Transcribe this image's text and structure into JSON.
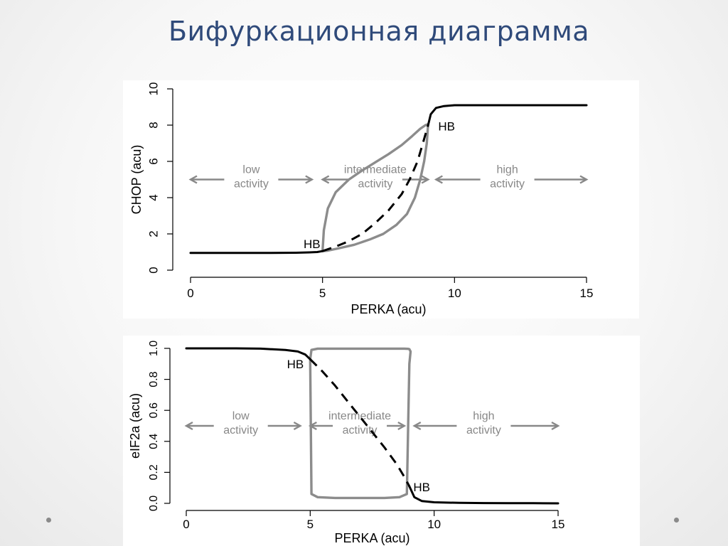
{
  "slide": {
    "title": "Бифуркационная диаграмма",
    "colors": {
      "title": "#2f4a7a",
      "stable": "#000000",
      "unstable": "#000000",
      "limit_cycle": "#8c8c8c",
      "annotation": "#888888"
    }
  },
  "chart_data": [
    {
      "type": "line",
      "xlabel": "PERKA (acu)",
      "ylabel": "CHOP (acu)",
      "xlim": [
        0,
        15
      ],
      "ylim": [
        0,
        10
      ],
      "xticks": [
        0,
        5,
        10,
        15
      ],
      "yticks": [
        0,
        2,
        4,
        6,
        8,
        10
      ],
      "grid": false,
      "series": [
        {
          "style": "solid-black",
          "x": [
            0,
            1,
            2,
            3,
            4,
            4.5,
            4.8,
            5.0
          ],
          "y": [
            0.95,
            0.95,
            0.95,
            0.95,
            0.96,
            0.98,
            1.0,
            1.05
          ]
        },
        {
          "style": "dashed-black",
          "x": [
            5.0,
            5.5,
            6,
            6.5,
            7,
            7.5,
            8,
            8.3,
            8.6,
            8.8,
            9.0
          ],
          "y": [
            1.05,
            1.3,
            1.6,
            2.0,
            2.6,
            3.3,
            4.2,
            5.0,
            6.0,
            7.0,
            8.0
          ]
        },
        {
          "style": "solid-black",
          "x": [
            9.0,
            9.1,
            9.3,
            9.6,
            10,
            11,
            12,
            13,
            14,
            15
          ],
          "y": [
            8.0,
            8.6,
            8.95,
            9.05,
            9.1,
            9.1,
            9.1,
            9.1,
            9.1,
            9.1
          ]
        },
        {
          "style": "limit-cycle-gray",
          "x": [
            5.0,
            5.05,
            5.2,
            5.5,
            6,
            6.5,
            7,
            7.5,
            8,
            8.4,
            8.7,
            8.9,
            9.0,
            8.95,
            8.85,
            8.7,
            8.5,
            8.2,
            7.8,
            7.3,
            6.8,
            6.2,
            5.6,
            5.2,
            5.0
          ],
          "y": [
            1.05,
            2.2,
            3.4,
            4.3,
            5.0,
            5.5,
            5.95,
            6.4,
            6.9,
            7.4,
            7.8,
            8.0,
            8.05,
            7.0,
            6.0,
            5.0,
            4.0,
            3.1,
            2.5,
            2.0,
            1.7,
            1.4,
            1.2,
            1.08,
            1.05
          ]
        }
      ],
      "annotations": [
        {
          "text": "HB",
          "x": 4.6,
          "y": 1.45
        },
        {
          "text": "HB",
          "x": 9.7,
          "y": 7.95
        }
      ],
      "regions": [
        {
          "lines": [
            "low",
            "activity"
          ],
          "x": 2.3,
          "arrow_from": 0,
          "arrow_to": 4.6
        },
        {
          "lines": [
            "intermediate",
            "activity"
          ],
          "x": 7.0,
          "arrow_from": 5.0,
          "arrow_to": 9.0
        },
        {
          "lines": [
            "high",
            "activity"
          ],
          "x": 12.0,
          "arrow_from": 9.3,
          "arrow_to": 15.0
        }
      ],
      "region_y": 5.0
    },
    {
      "type": "line",
      "xlabel": "PERKA (acu)",
      "ylabel": "eIF2a (acu)",
      "xlim": [
        0,
        15
      ],
      "ylim": [
        0,
        1
      ],
      "xticks": [
        0,
        5,
        10,
        15
      ],
      "yticks": [
        "0.0",
        "0.2",
        "0.4",
        "0.6",
        "0.8",
        "1.0"
      ],
      "grid": false,
      "series": [
        {
          "style": "solid-black",
          "x": [
            0,
            1,
            2,
            3,
            4,
            4.5,
            4.8,
            5.0
          ],
          "y": [
            1.0,
            1.0,
            1.0,
            0.998,
            0.99,
            0.98,
            0.96,
            0.93
          ]
        },
        {
          "style": "dashed-black",
          "x": [
            5.0,
            5.5,
            6,
            6.5,
            7,
            7.5,
            8,
            8.5,
            8.8,
            9.0
          ],
          "y": [
            0.93,
            0.85,
            0.76,
            0.66,
            0.56,
            0.46,
            0.36,
            0.25,
            0.17,
            0.11
          ]
        },
        {
          "style": "solid-black",
          "x": [
            9.0,
            9.2,
            9.5,
            10,
            11,
            12,
            13,
            14,
            15
          ],
          "y": [
            0.11,
            0.04,
            0.015,
            0.007,
            0.003,
            0.002,
            0.001,
            0.001,
            0.0
          ]
        },
        {
          "style": "limit-cycle-gray",
          "x": [
            5.0,
            5.05,
            5.3,
            6,
            7,
            8,
            8.6,
            8.9,
            8.95,
            9.0,
            9.05,
            9.0,
            8.95,
            8.8,
            8.5,
            8,
            7,
            6,
            5.3,
            5.05,
            5.0
          ],
          "y": [
            0.93,
            0.06,
            0.04,
            0.035,
            0.035,
            0.035,
            0.04,
            0.06,
            0.5,
            0.9,
            0.98,
            0.995,
            0.997,
            0.998,
            0.998,
            0.998,
            0.998,
            0.998,
            0.998,
            0.99,
            0.93
          ]
        }
      ],
      "annotations": [
        {
          "text": "HB",
          "x": 4.4,
          "y": 0.9
        },
        {
          "text": "HB",
          "x": 9.5,
          "y": 0.105
        }
      ],
      "regions": [
        {
          "lines": [
            "low",
            "activity"
          ],
          "x": 2.2,
          "arrow_from": 0,
          "arrow_to": 4.6
        },
        {
          "lines": [
            "intermediate",
            "activity"
          ],
          "x": 7.0,
          "arrow_from": 5.0,
          "arrow_to": 8.8
        },
        {
          "lines": [
            "high",
            "activity"
          ],
          "x": 12.0,
          "arrow_from": 9.2,
          "arrow_to": 15.0
        }
      ],
      "region_y": 0.5
    }
  ]
}
